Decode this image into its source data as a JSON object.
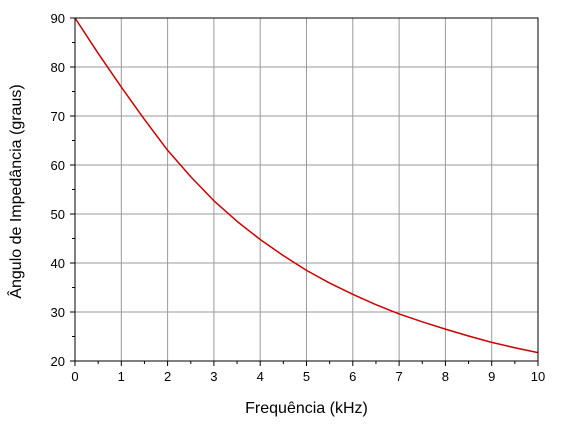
{
  "chart_data": {
    "type": "line",
    "title": "",
    "xlabel": "Frequência (kHz)",
    "ylabel": "Ângulo de Impedância (graus)",
    "xlim": [
      0,
      10
    ],
    "ylim": [
      20,
      90
    ],
    "xticks": [
      0,
      1,
      2,
      3,
      4,
      5,
      6,
      7,
      8,
      9,
      10
    ],
    "yticks": [
      20,
      30,
      40,
      50,
      60,
      70,
      80,
      90
    ],
    "grid": true,
    "legend": "none",
    "series": [
      {
        "color": "#cc0000",
        "x": [
          0,
          0.5,
          1,
          1.5,
          2,
          2.5,
          3,
          3.5,
          4,
          4.5,
          5,
          5.5,
          6,
          6.5,
          7,
          7.5,
          8,
          8.5,
          9,
          9.5,
          10
        ],
        "y": [
          90,
          82.8,
          75.9,
          69.3,
          63.0,
          57.6,
          52.7,
          48.5,
          44.8,
          41.5,
          38.5,
          35.9,
          33.6,
          31.5,
          29.6,
          28.0,
          26.5,
          25.1,
          23.8,
          22.7,
          21.7
        ]
      }
    ]
  }
}
